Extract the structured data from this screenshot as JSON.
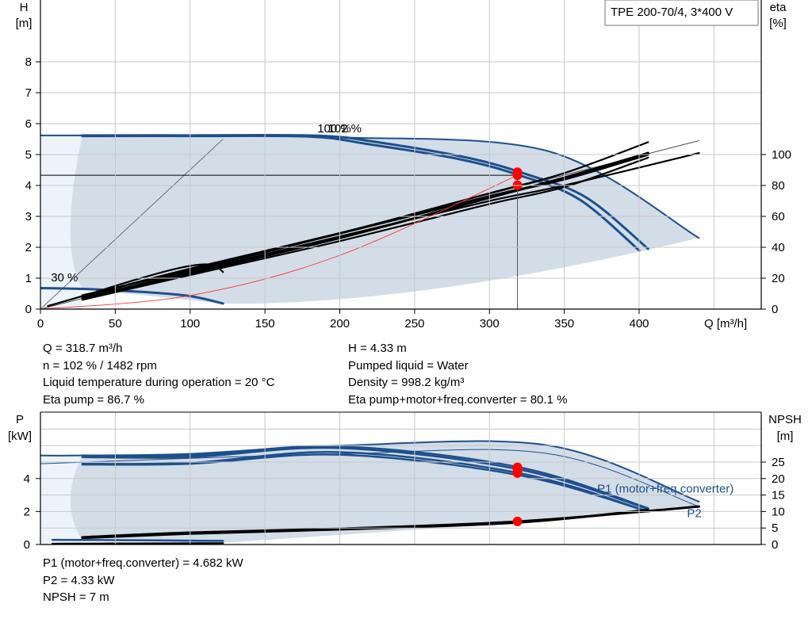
{
  "chart_title": "TPE 200-70/4, 3*400 V",
  "info_top_left": [
    "Q = 318.7 m³/h",
    "n = 102 % / 1482 rpm",
    "Liquid temperature during operation = 20 °C",
    "Eta pump = 86.7 %"
  ],
  "info_top_right": [
    "H = 4.33 m",
    "Pumped liquid = Water",
    "Density = 998.2 kg/m³",
    "Eta pump+motor+freq.converter = 80.1 %"
  ],
  "info_bottom": [
    "P1 (motor+freq.converter) = 4.682 kW",
    "P2 = 4.33 kW",
    "NPSH = 7 m"
  ],
  "colors": {
    "curve_blue": "#1d4f8c",
    "area_fill": "#d3dde8",
    "area_light": "#edf3fa",
    "grid": "#c8c8c8",
    "duty_point": "#ff0000",
    "system_curve": "#ff3333",
    "eta_curve": "#000000"
  },
  "chart_data": [
    {
      "type": "line",
      "title": "",
      "xlabel": "Q [m³/h]",
      "ylabel": "H\n[m]",
      "y2label": "eta\n[%]",
      "xlim": [
        0,
        480
      ],
      "ylim": [
        0,
        10
      ],
      "y2lim": [
        0,
        100
      ],
      "xticks": [
        "0",
        "50",
        "100",
        "150",
        "200",
        "250",
        "300",
        "350",
        "400"
      ],
      "yticks": [
        "0",
        "1",
        "2",
        "3",
        "4",
        "5",
        "6",
        "7",
        "8"
      ],
      "y2ticks": [
        "0",
        "20",
        "40",
        "60",
        "80",
        "100"
      ],
      "speed_labels": [
        {
          "text": "100 %",
          "x": 185,
          "y": 5.85
        },
        {
          "text": "102 %",
          "x": 192,
          "y": 5.85
        },
        {
          "text": "30 %",
          "x": 7,
          "y": 1.02
        }
      ],
      "series": [
        {
          "role": "qh_max",
          "x": [
            0,
            28,
            80,
            180,
            200,
            340,
            440
          ],
          "y": [
            5.62,
            5.62,
            5.62,
            5.62,
            5.56,
            5.1,
            2.3
          ]
        },
        {
          "role": "qh_100",
          "x": [
            28,
            100,
            180,
            220,
            280,
            320,
            360,
            400
          ],
          "y": [
            5.6,
            5.6,
            5.58,
            5.33,
            4.85,
            4.33,
            3.55,
            1.9
          ]
        },
        {
          "role": "qh_102",
          "x": [
            28,
            100,
            185,
            225,
            285,
            325,
            365,
            406
          ],
          "y": [
            5.62,
            5.62,
            5.61,
            5.4,
            4.9,
            4.36,
            3.6,
            1.95
          ]
        },
        {
          "role": "qh_30",
          "x": [
            0,
            30,
            70,
            100,
            122
          ],
          "y": [
            0.68,
            0.65,
            0.55,
            0.42,
            0.18
          ]
        },
        {
          "role": "eta_small",
          "x": [
            5,
            30,
            60,
            90,
            110,
            118,
            122
          ],
          "y2": [
            2,
            9,
            18,
            26,
            29,
            27,
            24
          ]
        },
        {
          "role": "eta_pump_100",
          "x": [
            28,
            100,
            200,
            300,
            350,
            406
          ],
          "y2": [
            8,
            26,
            49,
            73,
            84,
            100
          ]
        },
        {
          "role": "eta_pump_102",
          "x": [
            28,
            100,
            200,
            300,
            350,
            406
          ],
          "y2": [
            7,
            23,
            46,
            72,
            85,
            101
          ]
        },
        {
          "role": "eta_total_100",
          "x": [
            28,
            100,
            200,
            300,
            350,
            440
          ],
          "y2": [
            7,
            24,
            47,
            70,
            80,
            101
          ]
        },
        {
          "role": "eta_total_102",
          "x": [
            28,
            100,
            200,
            300,
            350,
            406
          ],
          "y2": [
            6,
            22,
            44,
            68,
            79,
            98
          ]
        },
        {
          "role": "eta_total_b",
          "x": [
            28,
            100,
            200,
            300,
            350,
            406
          ],
          "y2": [
            9,
            25,
            49,
            75,
            88,
            108
          ]
        },
        {
          "role": "eta_origin_thin",
          "x": [
            0,
            122
          ],
          "y2": [
            0,
            54
          ]
        },
        {
          "role": "system_curve",
          "x": [
            0,
            100,
            200,
            318.7
          ],
          "y": [
            0,
            0.44,
            1.74,
            4.33
          ]
        }
      ],
      "duty_points": [
        {
          "x": 318.7,
          "y": 4.33
        },
        {
          "x": 318.7,
          "y": 4.43
        },
        {
          "x": 318.7,
          "y": 4.01
        }
      ],
      "operating_line_y": 4.33,
      "operating_line_x": 318.7
    },
    {
      "type": "line",
      "title": "",
      "xlabel": "",
      "ylabel": "P\n[kW]",
      "y2label": "NPSH\n[m]",
      "xlim": [
        0,
        480
      ],
      "ylim": [
        0,
        7
      ],
      "y2lim": [
        0,
        35
      ],
      "yticks": [
        "0",
        "2",
        "4"
      ],
      "y2ticks": [
        "0",
        "5",
        "10",
        "15",
        "20",
        "25"
      ],
      "series_labels": [
        {
          "text": "P1 (motor+freq.converter)",
          "x": 372,
          "y": 3.4
        },
        {
          "text": "P2",
          "x": 432,
          "y": 1.9
        }
      ],
      "series": [
        {
          "role": "p1_max",
          "x": [
            0,
            28,
            100,
            200,
            340,
            440
          ],
          "y": [
            5.4,
            5.4,
            5.5,
            6.0,
            6.0,
            2.6
          ]
        },
        {
          "role": "p1_102",
          "x": [
            28,
            100,
            200,
            320,
            406
          ],
          "y": [
            5.4,
            5.4,
            5.95,
            4.68,
            2.2
          ]
        },
        {
          "role": "p1_100",
          "x": [
            28,
            100,
            200,
            320,
            406
          ],
          "y": [
            5.3,
            5.3,
            5.85,
            4.55,
            2.15
          ]
        },
        {
          "role": "p2_102",
          "x": [
            28,
            100,
            200,
            320,
            406
          ],
          "y": [
            4.9,
            4.95,
            5.6,
            4.33,
            2.0
          ]
        },
        {
          "role": "p2_100",
          "x": [
            28,
            100,
            200,
            320,
            406
          ],
          "y": [
            4.85,
            4.9,
            5.45,
            4.2,
            2.0
          ]
        },
        {
          "role": "p1_thin",
          "x": [
            0,
            200,
            340,
            440
          ],
          "y": [
            4.9,
            5.5,
            5.5,
            2.3
          ]
        },
        {
          "role": "npsh",
          "x": [
            28,
            100,
            200,
            320,
            440
          ],
          "y2": [
            2.2,
            3.6,
            4.8,
            7.0,
            11.5
          ]
        },
        {
          "role": "npsh_b",
          "x": [
            28,
            100,
            200,
            320,
            406
          ],
          "y2": [
            2.0,
            3.3,
            4.6,
            6.7,
            10.5
          ]
        },
        {
          "role": "p_30",
          "x": [
            8,
            60,
            122
          ],
          "y": [
            0.05,
            0.07,
            0.08
          ]
        },
        {
          "role": "p_30b",
          "x": [
            8,
            60,
            122
          ],
          "y": [
            0.28,
            0.26,
            0.22
          ]
        }
      ],
      "duty_points": [
        {
          "x": 318.7,
          "y": 4.68
        },
        {
          "x": 318.7,
          "y": 4.52
        },
        {
          "x": 318.7,
          "y": 4.33
        },
        {
          "x": 318.7,
          "y2": 7.0
        }
      ]
    }
  ]
}
